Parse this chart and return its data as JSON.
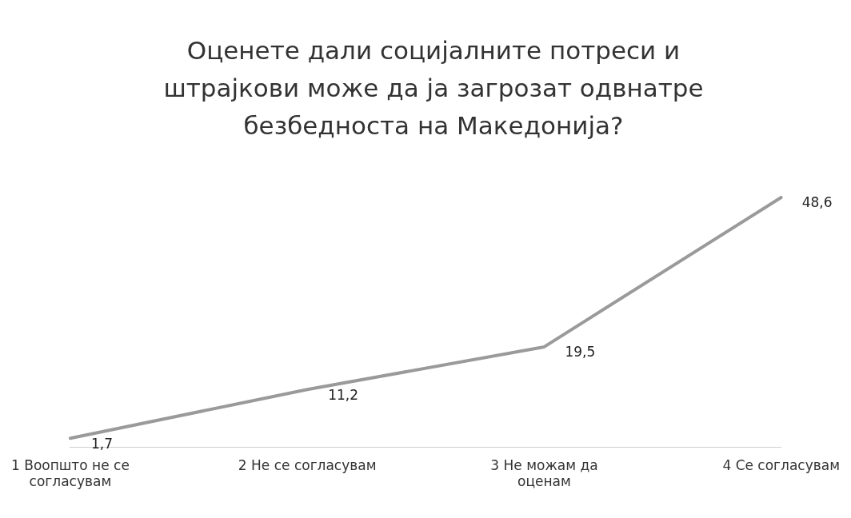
{
  "chart_data": {
    "type": "line",
    "title": "Оценете дали социјалните потреси и штрајкови може да ја загрозат одвнатре безбедноста на Македонија?",
    "categories": [
      "1 Воопшто не се согласувам",
      "2 Не се согласувам",
      "3 Не можам да оценам",
      "4 Се согласувам"
    ],
    "series": [
      {
        "color": "#9a9a9a",
        "values": [
          1.7,
          11.2,
          19.5,
          48.6
        ],
        "value_labels": [
          "1,7",
          "11,2",
          "19,5",
          "48,6"
        ]
      }
    ],
    "tick_labels": "x",
    "grid": false,
    "legend": false,
    "marker": "none",
    "line_style": "solid"
  }
}
